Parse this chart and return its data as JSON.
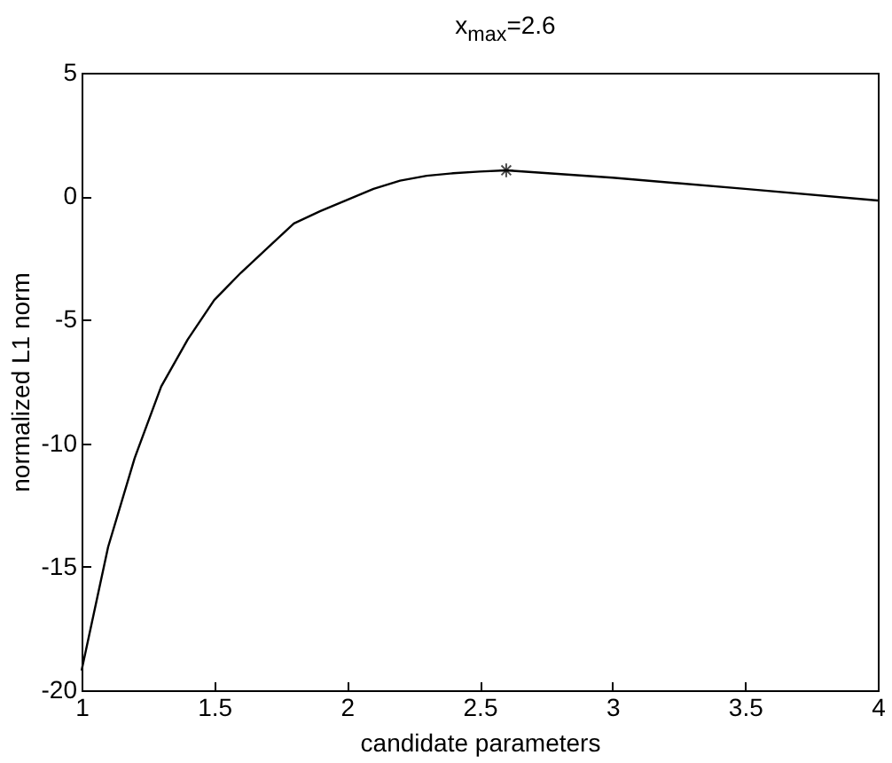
{
  "chart_data": {
    "type": "line",
    "title": "x$_{max}$=2.6",
    "xlabel": "candidate parameters",
    "ylabel": "normalized L1 norm",
    "xlim": [
      1,
      4
    ],
    "xticks": [
      1,
      1.5,
      2,
      2.5,
      3,
      3.5,
      4
    ],
    "ylim": [
      -20,
      5
    ],
    "yticks": [
      -20,
      -15,
      -10,
      -5,
      0,
      5
    ],
    "grid": false,
    "series": [
      {
        "color": "#000000",
        "marker": "none",
        "x": [
          1,
          1.1,
          1.2,
          1.3,
          1.4,
          1.5,
          1.6,
          1.7,
          1.8,
          1.9,
          2,
          2.1,
          2.2,
          2.3,
          2.4,
          2.5,
          2.6,
          3,
          3.5,
          4
        ],
        "values": [
          -19.2,
          -14.2,
          -10.6,
          -7.7,
          -5.8,
          -4.2,
          -3.1,
          -2.1,
          -1.1,
          -0.6,
          -0.15,
          0.3,
          0.63,
          0.83,
          0.93,
          1,
          1.05,
          0.75,
          0.3,
          -0.17
        ]
      },
      {
        "type": "scatter",
        "color": "#000000",
        "marker": "cross",
        "x": [
          2.6
        ],
        "values": [
          1.05
        ]
      }
    ]
  }
}
